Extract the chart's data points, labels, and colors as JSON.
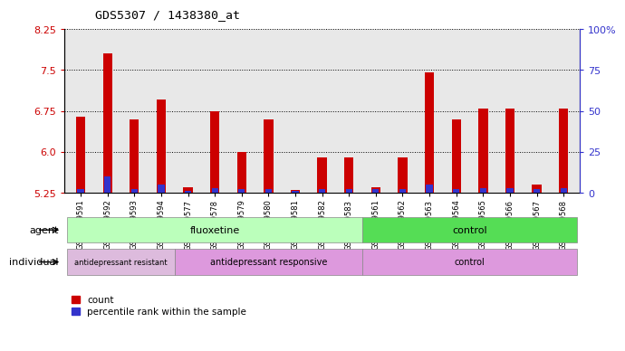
{
  "title": "GDS5307 / 1438380_at",
  "samples": [
    "GSM1059591",
    "GSM1059592",
    "GSM1059593",
    "GSM1059594",
    "GSM1059577",
    "GSM1059578",
    "GSM1059579",
    "GSM1059580",
    "GSM1059581",
    "GSM1059582",
    "GSM1059583",
    "GSM1059561",
    "GSM1059562",
    "GSM1059563",
    "GSM1059564",
    "GSM1059565",
    "GSM1059566",
    "GSM1059567",
    "GSM1059568"
  ],
  "counts": [
    6.65,
    7.8,
    6.6,
    6.95,
    5.35,
    6.75,
    6.0,
    6.6,
    5.3,
    5.9,
    5.9,
    5.35,
    5.9,
    7.45,
    6.6,
    6.8,
    6.8,
    5.4,
    6.8
  ],
  "percentiles": [
    2,
    10,
    2,
    5,
    1,
    3,
    2,
    2,
    1,
    2,
    2,
    2,
    2,
    5,
    2,
    3,
    3,
    2,
    3
  ],
  "ylim_left": [
    5.25,
    8.25
  ],
  "yticks_left": [
    5.25,
    6.0,
    6.75,
    7.5,
    8.25
  ],
  "ylim_right": [
    0,
    100
  ],
  "yticks_right": [
    0,
    25,
    50,
    75,
    100
  ],
  "ytick_labels_right": [
    "0",
    "25",
    "50",
    "75",
    "100%"
  ],
  "bar_color_red": "#cc0000",
  "bar_color_blue": "#3333cc",
  "fluox_color_light": "#bbffbb",
  "fluox_color_dark": "#55dd55",
  "ctrl_color": "#55dd55",
  "resist_color": "#ddbbdd",
  "responsive_color": "#dd99dd",
  "ctrl_indiv_color": "#dd99dd",
  "legend_count_label": "count",
  "legend_pct_label": "percentile rank within the sample",
  "agent_label": "agent",
  "individual_label": "individual",
  "left_axis_color": "#cc0000",
  "right_axis_color": "#3333cc",
  "plot_bg_color": "#e8e8e8",
  "fluox_n": 11,
  "resist_n": 4,
  "responsive_n": 7,
  "ctrl_n": 8
}
